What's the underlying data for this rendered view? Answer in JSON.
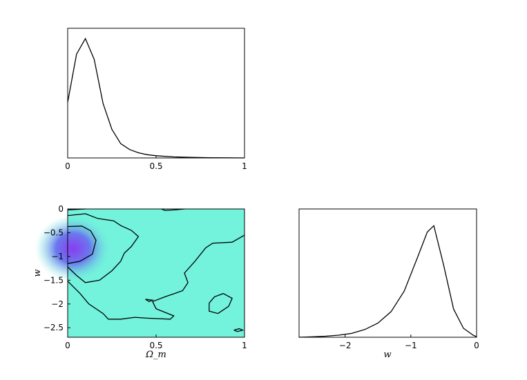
{
  "chart_data": [
    {
      "type": "line",
      "panel": "top-left",
      "title": "",
      "xlabel": "",
      "ylabel": "",
      "xlim": [
        0,
        1
      ],
      "ylim": [
        0,
        1
      ],
      "xticks": [
        "0",
        "0.5",
        "1"
      ],
      "yticks": [],
      "series": [
        {
          "x": [
            0,
            0.05,
            0.1,
            0.15,
            0.2,
            0.25,
            0.3,
            0.35,
            0.4,
            0.45,
            0.5,
            0.6,
            0.7,
            0.8,
            0.9,
            1.0
          ],
          "values": [
            0.43,
            0.8,
            0.92,
            0.76,
            0.42,
            0.22,
            0.11,
            0.065,
            0.04,
            0.025,
            0.017,
            0.008,
            0.004,
            0.002,
            0.001,
            0.0
          ]
        }
      ]
    },
    {
      "type": "contour",
      "panel": "bottom-left",
      "title": "",
      "xlabel": "Ω_m",
      "ylabel": "w",
      "xlim": [
        0,
        1
      ],
      "ylim": [
        -2.7,
        0
      ],
      "xticks": [
        "0",
        "0.5",
        "1"
      ],
      "yticks": [
        "0",
        "−0.5",
        "−1",
        "−1.5",
        "−2",
        "−2.5"
      ],
      "colors": {
        "background": "#73f2dc",
        "peak": "#8a3cf0",
        "mid": "#6a78ee",
        "contour": "#000000"
      },
      "peak": {
        "x": 0.03,
        "y": -0.83
      },
      "contours": [
        [
          [
            0.0,
            -0.37
          ],
          [
            0.08,
            -0.36
          ],
          [
            0.13,
            -0.46
          ],
          [
            0.16,
            -0.66
          ],
          [
            0.14,
            -0.95
          ],
          [
            0.07,
            -1.1
          ],
          [
            0.0,
            -1.15
          ]
        ],
        [
          [
            0.0,
            -0.14
          ],
          [
            0.1,
            -0.1
          ],
          [
            0.17,
            -0.2
          ],
          [
            0.26,
            -0.25
          ],
          [
            0.3,
            -0.35
          ],
          [
            0.36,
            -0.45
          ],
          [
            0.4,
            -0.58
          ],
          [
            0.36,
            -0.79
          ],
          [
            0.32,
            -0.93
          ],
          [
            0.3,
            -1.1
          ],
          [
            0.25,
            -1.3
          ],
          [
            0.18,
            -1.5
          ],
          [
            0.1,
            -1.55
          ],
          [
            0.05,
            -1.4
          ],
          [
            0.0,
            -1.22
          ]
        ],
        [
          [
            0.0,
            -0.02
          ],
          [
            0.1,
            0.0
          ]
        ],
        [
          [
            0.53,
            0.0
          ],
          [
            0.55,
            -0.03
          ],
          [
            0.6,
            -0.02
          ],
          [
            0.66,
            0.0
          ]
        ],
        [
          [
            0.0,
            -1.52
          ],
          [
            0.07,
            -1.78
          ],
          [
            0.12,
            -2.0
          ],
          [
            0.2,
            -2.2
          ],
          [
            0.23,
            -2.32
          ],
          [
            0.3,
            -2.32
          ],
          [
            0.38,
            -2.28
          ],
          [
            0.45,
            -2.3
          ],
          [
            0.58,
            -2.32
          ],
          [
            0.6,
            -2.25
          ],
          [
            0.5,
            -2.1
          ],
          [
            0.48,
            -1.95
          ],
          [
            0.55,
            -1.85
          ],
          [
            0.65,
            -1.72
          ],
          [
            0.68,
            -1.55
          ],
          [
            0.66,
            -1.35
          ],
          [
            0.72,
            -1.1
          ],
          [
            0.78,
            -0.82
          ],
          [
            0.82,
            -0.72
          ],
          [
            0.93,
            -0.7
          ],
          [
            1.0,
            -0.55
          ]
        ],
        [
          [
            0.44,
            -1.9
          ],
          [
            0.46,
            -1.95
          ],
          [
            0.48,
            -1.92
          ],
          [
            0.44,
            -1.9
          ]
        ],
        [
          [
            0.8,
            -1.98
          ],
          [
            0.83,
            -1.85
          ],
          [
            0.88,
            -1.78
          ],
          [
            0.93,
            -1.88
          ],
          [
            0.91,
            -2.05
          ],
          [
            0.85,
            -2.2
          ],
          [
            0.8,
            -2.15
          ],
          [
            0.8,
            -1.98
          ]
        ],
        [
          [
            0.94,
            -2.55
          ],
          [
            0.97,
            -2.52
          ],
          [
            0.99,
            -2.55
          ],
          [
            0.96,
            -2.58
          ],
          [
            0.94,
            -2.55
          ]
        ]
      ]
    },
    {
      "type": "line",
      "panel": "bottom-right",
      "title": "",
      "xlabel": "w",
      "ylabel": "",
      "xlim": [
        -2.7,
        0
      ],
      "ylim": [
        0,
        1
      ],
      "xticks": [
        "−2",
        "−1",
        "0"
      ],
      "yticks": [],
      "series": [
        {
          "x": [
            -2.7,
            -2.5,
            -2.3,
            -2.1,
            -1.9,
            -1.7,
            -1.5,
            -1.3,
            -1.1,
            -0.9,
            -0.75,
            -0.65,
            -0.5,
            -0.35,
            -0.2,
            -0.05,
            0.0
          ],
          "values": [
            0.0,
            0.003,
            0.008,
            0.016,
            0.03,
            0.06,
            0.11,
            0.2,
            0.36,
            0.62,
            0.82,
            0.87,
            0.56,
            0.22,
            0.07,
            0.015,
            0.005
          ]
        }
      ]
    }
  ]
}
